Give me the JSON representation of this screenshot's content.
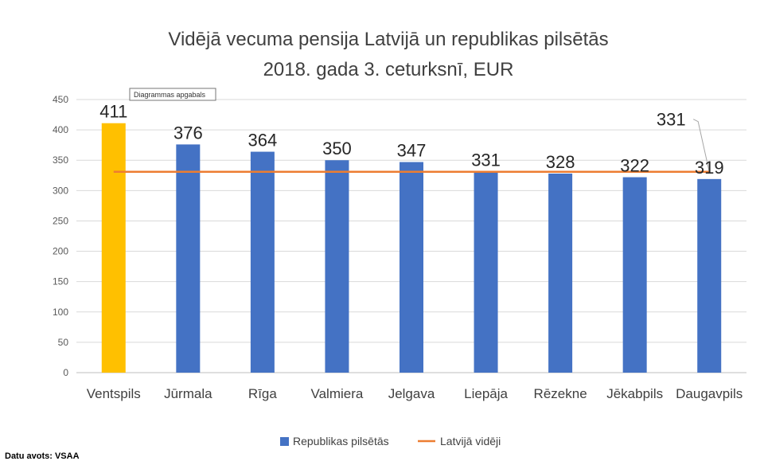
{
  "chart_data": {
    "type": "bar",
    "title": [
      "Vidējā vecuma pensija Latvijā un republikas pilsētās",
      "2018. gada 3. ceturksnī, EUR"
    ],
    "categories": [
      "Ventspils",
      "Jūrmala",
      "Rīga",
      "Valmiera",
      "Jelgava",
      "Liepāja",
      "Rēzekne",
      "Jēkabpils",
      "Daugavpils"
    ],
    "series": [
      {
        "name": "Republikas pilsētās",
        "type": "bar",
        "values": [
          411,
          376,
          364,
          350,
          347,
          331,
          328,
          322,
          319
        ]
      },
      {
        "name": "Latvijā vidēji",
        "type": "line",
        "values": [
          331,
          331,
          331,
          331,
          331,
          331,
          331,
          331,
          331
        ]
      }
    ],
    "data_labels": [
      "411",
      "376",
      "364",
      "350",
      "347",
      "331",
      "328",
      "322",
      "319"
    ],
    "line_label": "331",
    "ylim": [
      0,
      450
    ],
    "yticks": [
      0,
      50,
      100,
      150,
      200,
      250,
      300,
      350,
      400,
      450
    ],
    "grid": true,
    "legend_position": "bottom",
    "colors": {
      "bar": "#4472C4",
      "highlight": "#FFC000",
      "line": "#ED7D31",
      "grid": "#D9D9D9"
    },
    "highlight_index": 0
  },
  "tooltip": "Diagrammas apgabals",
  "source": "Datu avots: VSAA"
}
